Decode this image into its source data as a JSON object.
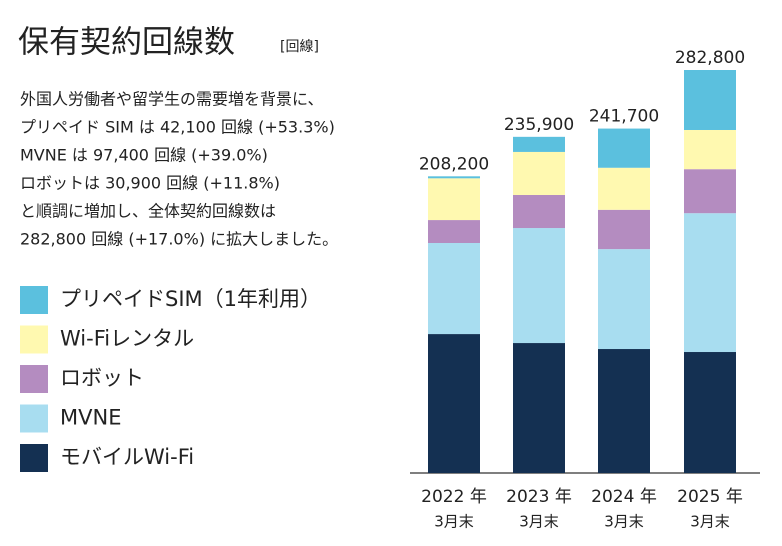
{
  "chart_data": {
    "type": "stacked-bar",
    "title": "保有契約回線数",
    "unit": "[回線]",
    "description": [
      "外国人労働者や留学生の需要増を背景に、",
      "プリペイド SIM は 42,100 回線 (+53.3%)",
      "MVNE は 97,400 回線 (+39.0%)",
      "ロボットは 30,900 回線 (+11.8%)",
      "と順調に増加し、全体契約回線数は",
      "282,800 回線 (+17.0%) に拡大しました。"
    ],
    "categories": [
      [
        "2022 年",
        "3月末"
      ],
      [
        "2023 年",
        "3月末"
      ],
      [
        "2024 年",
        "3月末"
      ],
      [
        "2025 年",
        "3月末"
      ]
    ],
    "series": [
      {
        "name": "モバイルWi-Fi",
        "color": "#143052",
        "values": [
          97500,
          91200,
          87000,
          84900
        ]
      },
      {
        "name": "MVNE",
        "color": "#a8ddf0",
        "values": [
          63900,
          80700,
          70100,
          97400
        ]
      },
      {
        "name": "ロボット",
        "color": "#b48cc0",
        "values": [
          16100,
          23200,
          27600,
          30900
        ]
      },
      {
        "name": "Wi-Fiレンタル",
        "color": "#fff9b0",
        "values": [
          29300,
          30200,
          29500,
          27500
        ]
      },
      {
        "name": "プリペイドSIM（1年利用）",
        "color": "#5bc0de",
        "values": [
          1400,
          10600,
          27500,
          42100
        ]
      }
    ],
    "totals": [
      208200,
      235900,
      241700,
      282800
    ],
    "total_labels": [
      "208,200",
      "235,900",
      "241,700",
      "282,800"
    ]
  }
}
